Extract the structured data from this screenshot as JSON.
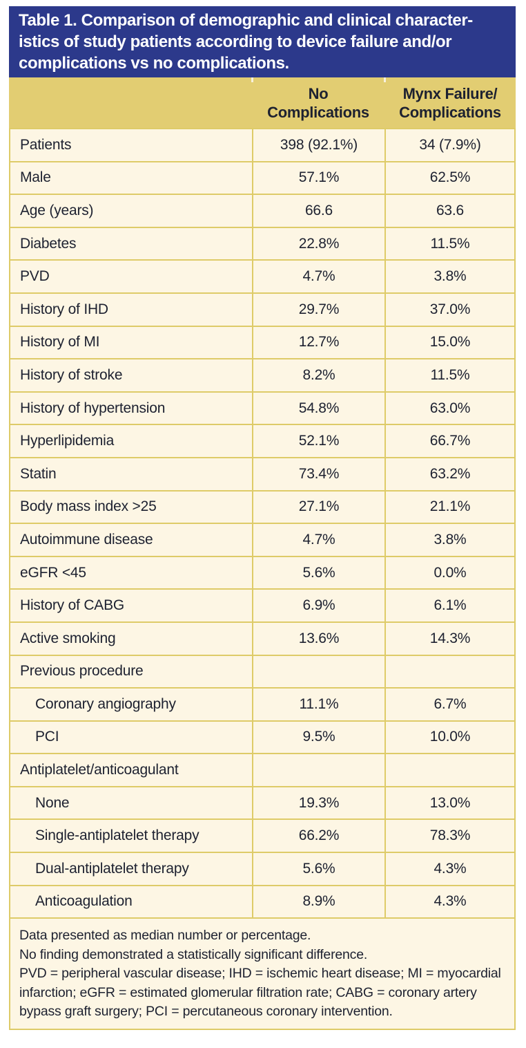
{
  "colors": {
    "title_bar_blue": "#2c398b",
    "header_band_gold": "#e2cd72",
    "rule_gold": "#decb68",
    "cell_cream": "#fdf6e4",
    "text_dark": "#1d2130",
    "title_text_white": "#ffffff"
  },
  "title_bar": {
    "lines": [
      "Table 1. Comparison of demographic and clinical character-",
      "istics of study patients according to device failure and/or",
      "complications vs no complications."
    ]
  },
  "column_headers": {
    "no_complications": [
      "No",
      "Complications"
    ],
    "mynx_failure": [
      "Mynx Failure/",
      "Complications"
    ]
  },
  "rows": [
    {
      "label": "Patients",
      "indent": false,
      "no_complications": "398 (92.1%)",
      "mynx_failure": "34 (7.9%)"
    },
    {
      "label": "Male",
      "indent": false,
      "no_complications": "57.1%",
      "mynx_failure": "62.5%"
    },
    {
      "label": "Age (years)",
      "indent": false,
      "no_complications": "66.6",
      "mynx_failure": "63.6"
    },
    {
      "label": "Diabetes",
      "indent": false,
      "no_complications": "22.8%",
      "mynx_failure": "11.5%"
    },
    {
      "label": "PVD",
      "indent": false,
      "no_complications": "4.7%",
      "mynx_failure": "3.8%"
    },
    {
      "label": "History of IHD",
      "indent": false,
      "no_complications": "29.7%",
      "mynx_failure": "37.0%"
    },
    {
      "label": "History of MI",
      "indent": false,
      "no_complications": "12.7%",
      "mynx_failure": "15.0%"
    },
    {
      "label": "History of stroke",
      "indent": false,
      "no_complications": "8.2%",
      "mynx_failure": "11.5%"
    },
    {
      "label": "History of hypertension",
      "indent": false,
      "no_complications": "54.8%",
      "mynx_failure": "63.0%"
    },
    {
      "label": "Hyperlipidemia",
      "indent": false,
      "no_complications": "52.1%",
      "mynx_failure": "66.7%"
    },
    {
      "label": "Statin",
      "indent": false,
      "no_complications": "73.4%",
      "mynx_failure": "63.2%"
    },
    {
      "label": "Body mass index >25",
      "indent": false,
      "no_complications": "27.1%",
      "mynx_failure": "21.1%"
    },
    {
      "label": "Autoimmune disease",
      "indent": false,
      "no_complications": "4.7%",
      "mynx_failure": "3.8%"
    },
    {
      "label": "eGFR <45",
      "indent": false,
      "no_complications": "5.6%",
      "mynx_failure": "0.0%"
    },
    {
      "label": "History of CABG",
      "indent": false,
      "no_complications": "6.9%",
      "mynx_failure": "6.1%"
    },
    {
      "label": "Active smoking",
      "indent": false,
      "no_complications": "13.6%",
      "mynx_failure": "14.3%"
    },
    {
      "label": "Previous procedure",
      "indent": false,
      "no_complications": "",
      "mynx_failure": ""
    },
    {
      "label": "Coronary angiography",
      "indent": true,
      "no_complications": "11.1%",
      "mynx_failure": "6.7%"
    },
    {
      "label": "PCI",
      "indent": true,
      "no_complications": "9.5%",
      "mynx_failure": "10.0%"
    },
    {
      "label": "Antiplatelet/anticoagulant",
      "indent": false,
      "no_complications": "",
      "mynx_failure": ""
    },
    {
      "label": "None",
      "indent": true,
      "no_complications": "19.3%",
      "mynx_failure": "13.0%"
    },
    {
      "label": "Single-antiplatelet therapy",
      "indent": true,
      "no_complications": "66.2%",
      "mynx_failure": "78.3%"
    },
    {
      "label": "Dual-antiplatelet therapy",
      "indent": true,
      "no_complications": "5.6%",
      "mynx_failure": "4.3%"
    },
    {
      "label": "Anticoagulation",
      "indent": true,
      "no_complications": "8.9%",
      "mynx_failure": "4.3%"
    }
  ],
  "footnotes": [
    "Data presented as median number or percentage.",
    "No finding demonstrated a statistically significant difference.",
    "PVD = peripheral vascular disease; IHD = ischemic heart disease; MI = myocardial infarction; eGFR = estimated glomerular filtration rate; CABG = coronary artery bypass graft surgery; PCI = percutaneous coronary intervention."
  ]
}
